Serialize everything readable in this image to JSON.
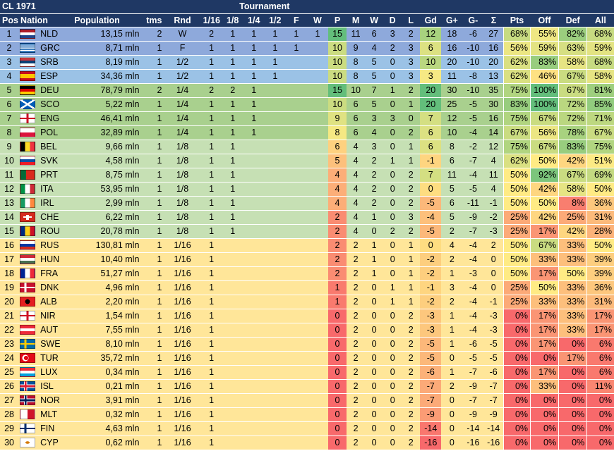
{
  "header": {
    "title": "CL 1971",
    "tournament": "Tournament",
    "cols": [
      "Pos",
      "Nation",
      "Population",
      "tms",
      "Rnd",
      "1/16",
      "1/8",
      "1/4",
      "1/2",
      "F",
      "W",
      "P",
      "M",
      "W",
      "D",
      "L",
      "Gd",
      "G+",
      "G-",
      "Σ",
      "Pts",
      "Off",
      "Def",
      "All"
    ]
  },
  "colors": {
    "header": "#1f3864",
    "band_winner": "#8ea9db",
    "band_semi": "#9bc2e6",
    "band_quarter": "#a9d08e",
    "band_r16": "#c6e0b4",
    "band_r32": "#ffe699",
    "red": "#f8696b",
    "yellow": "#ffeb84",
    "green": "#63be7b"
  },
  "rows": [
    {
      "pos": "1",
      "flag": "nld",
      "nation": "NLD",
      "pop": "13,15 mln",
      "tms": "2",
      "rnd": "W",
      "r16": "2",
      "r8": "1",
      "r4": "1",
      "r2": "1",
      "f": "1",
      "w": "1",
      "p": "15",
      "m": "11",
      "wi": "6",
      "d": "3",
      "l": "2",
      "gd": "12",
      "gp": "18",
      "gm": "-6",
      "sum": "27",
      "pts": "68%",
      "off": "55%",
      "def": "82%",
      "all": "68%"
    },
    {
      "pos": "2",
      "flag": "grc",
      "nation": "GRC",
      "pop": "8,71 mln",
      "tms": "1",
      "rnd": "F",
      "r16": "1",
      "r8": "1",
      "r4": "1",
      "r2": "1",
      "f": "1",
      "w": "",
      "p": "10",
      "m": "9",
      "wi": "4",
      "d": "2",
      "l": "3",
      "gd": "6",
      "gp": "16",
      "gm": "-10",
      "sum": "16",
      "pts": "56%",
      "off": "59%",
      "def": "63%",
      "all": "59%"
    },
    {
      "pos": "3",
      "flag": "srb",
      "nation": "SRB",
      "pop": "8,19 mln",
      "tms": "1",
      "rnd": "1/2",
      "r16": "1",
      "r8": "1",
      "r4": "1",
      "r2": "1",
      "f": "",
      "w": "",
      "p": "10",
      "m": "8",
      "wi": "5",
      "d": "0",
      "l": "3",
      "gd": "10",
      "gp": "20",
      "gm": "-10",
      "sum": "20",
      "pts": "62%",
      "off": "83%",
      "def": "58%",
      "all": "68%"
    },
    {
      "pos": "4",
      "flag": "esp",
      "nation": "ESP",
      "pop": "34,36 mln",
      "tms": "1",
      "rnd": "1/2",
      "r16": "1",
      "r8": "1",
      "r4": "1",
      "r2": "1",
      "f": "",
      "w": "",
      "p": "10",
      "m": "8",
      "wi": "5",
      "d": "0",
      "l": "3",
      "gd": "3",
      "gp": "11",
      "gm": "-8",
      "sum": "13",
      "pts": "62%",
      "off": "46%",
      "def": "67%",
      "all": "58%"
    },
    {
      "pos": "5",
      "flag": "deu",
      "nation": "DEU",
      "pop": "78,79 mln",
      "tms": "2",
      "rnd": "1/4",
      "r16": "2",
      "r8": "2",
      "r4": "1",
      "r2": "",
      "f": "",
      "w": "",
      "p": "15",
      "m": "10",
      "wi": "7",
      "d": "1",
      "l": "2",
      "gd": "20",
      "gp": "30",
      "gm": "-10",
      "sum": "35",
      "pts": "75%",
      "off": "100%",
      "def": "67%",
      "all": "81%"
    },
    {
      "pos": "6",
      "flag": "sco",
      "nation": "SCO",
      "pop": "5,22 mln",
      "tms": "1",
      "rnd": "1/4",
      "r16": "1",
      "r8": "1",
      "r4": "1",
      "r2": "",
      "f": "",
      "w": "",
      "p": "10",
      "m": "6",
      "wi": "5",
      "d": "0",
      "l": "1",
      "gd": "20",
      "gp": "25",
      "gm": "-5",
      "sum": "30",
      "pts": "83%",
      "off": "100%",
      "def": "72%",
      "all": "85%"
    },
    {
      "pos": "7",
      "flag": "eng",
      "nation": "ENG",
      "pop": "46,41 mln",
      "tms": "1",
      "rnd": "1/4",
      "r16": "1",
      "r8": "1",
      "r4": "1",
      "r2": "",
      "f": "",
      "w": "",
      "p": "9",
      "m": "6",
      "wi": "3",
      "d": "3",
      "l": "0",
      "gd": "7",
      "gp": "12",
      "gm": "-5",
      "sum": "16",
      "pts": "75%",
      "off": "67%",
      "def": "72%",
      "all": "71%"
    },
    {
      "pos": "8",
      "flag": "pol",
      "nation": "POL",
      "pop": "32,89 mln",
      "tms": "1",
      "rnd": "1/4",
      "r16": "1",
      "r8": "1",
      "r4": "1",
      "r2": "",
      "f": "",
      "w": "",
      "p": "8",
      "m": "6",
      "wi": "4",
      "d": "0",
      "l": "2",
      "gd": "6",
      "gp": "10",
      "gm": "-4",
      "sum": "14",
      "pts": "67%",
      "off": "56%",
      "def": "78%",
      "all": "67%"
    },
    {
      "pos": "9",
      "flag": "bel",
      "nation": "BEL",
      "pop": "9,66 mln",
      "tms": "1",
      "rnd": "1/8",
      "r16": "1",
      "r8": "1",
      "r4": "",
      "r2": "",
      "f": "",
      "w": "",
      "p": "6",
      "m": "4",
      "wi": "3",
      "d": "0",
      "l": "1",
      "gd": "6",
      "gp": "8",
      "gm": "-2",
      "sum": "12",
      "pts": "75%",
      "off": "67%",
      "def": "83%",
      "all": "75%"
    },
    {
      "pos": "10",
      "flag": "svk",
      "nation": "SVK",
      "pop": "4,58 mln",
      "tms": "1",
      "rnd": "1/8",
      "r16": "1",
      "r8": "1",
      "r4": "",
      "r2": "",
      "f": "",
      "w": "",
      "p": "5",
      "m": "4",
      "wi": "2",
      "d": "1",
      "l": "1",
      "gd": "-1",
      "gp": "6",
      "gm": "-7",
      "sum": "4",
      "pts": "62%",
      "off": "50%",
      "def": "42%",
      "all": "51%"
    },
    {
      "pos": "11",
      "flag": "prt",
      "nation": "PRT",
      "pop": "8,75 mln",
      "tms": "1",
      "rnd": "1/8",
      "r16": "1",
      "r8": "1",
      "r4": "",
      "r2": "",
      "f": "",
      "w": "",
      "p": "4",
      "m": "4",
      "wi": "2",
      "d": "0",
      "l": "2",
      "gd": "7",
      "gp": "11",
      "gm": "-4",
      "sum": "11",
      "pts": "50%",
      "off": "92%",
      "def": "67%",
      "all": "69%"
    },
    {
      "pos": "12",
      "flag": "ita",
      "nation": "ITA",
      "pop": "53,95 mln",
      "tms": "1",
      "rnd": "1/8",
      "r16": "1",
      "r8": "1",
      "r4": "",
      "r2": "",
      "f": "",
      "w": "",
      "p": "4",
      "m": "4",
      "wi": "2",
      "d": "0",
      "l": "2",
      "gd": "0",
      "gp": "5",
      "gm": "-5",
      "sum": "4",
      "pts": "50%",
      "off": "42%",
      "def": "58%",
      "all": "50%"
    },
    {
      "pos": "13",
      "flag": "irl",
      "nation": "IRL",
      "pop": "2,99 mln",
      "tms": "1",
      "rnd": "1/8",
      "r16": "1",
      "r8": "1",
      "r4": "",
      "r2": "",
      "f": "",
      "w": "",
      "p": "4",
      "m": "4",
      "wi": "2",
      "d": "0",
      "l": "2",
      "gd": "-5",
      "gp": "6",
      "gm": "-11",
      "sum": "-1",
      "pts": "50%",
      "off": "50%",
      "def": "8%",
      "all": "36%"
    },
    {
      "pos": "14",
      "flag": "che",
      "nation": "CHE",
      "pop": "6,22 mln",
      "tms": "1",
      "rnd": "1/8",
      "r16": "1",
      "r8": "1",
      "r4": "",
      "r2": "",
      "f": "",
      "w": "",
      "p": "2",
      "m": "4",
      "wi": "1",
      "d": "0",
      "l": "3",
      "gd": "-4",
      "gp": "5",
      "gm": "-9",
      "sum": "-2",
      "pts": "25%",
      "off": "42%",
      "def": "25%",
      "all": "31%"
    },
    {
      "pos": "15",
      "flag": "rou",
      "nation": "ROU",
      "pop": "20,78 mln",
      "tms": "1",
      "rnd": "1/8",
      "r16": "1",
      "r8": "1",
      "r4": "",
      "r2": "",
      "f": "",
      "w": "",
      "p": "2",
      "m": "4",
      "wi": "0",
      "d": "2",
      "l": "2",
      "gd": "-5",
      "gp": "2",
      "gm": "-7",
      "sum": "-3",
      "pts": "25%",
      "off": "17%",
      "def": "42%",
      "all": "28%"
    },
    {
      "pos": "16",
      "flag": "rus",
      "nation": "RUS",
      "pop": "130,81 mln",
      "tms": "1",
      "rnd": "1/16",
      "r16": "1",
      "r8": "",
      "r4": "",
      "r2": "",
      "f": "",
      "w": "",
      "p": "2",
      "m": "2",
      "wi": "1",
      "d": "0",
      "l": "1",
      "gd": "0",
      "gp": "4",
      "gm": "-4",
      "sum": "2",
      "pts": "50%",
      "off": "67%",
      "def": "33%",
      "all": "50%"
    },
    {
      "pos": "17",
      "flag": "hun",
      "nation": "HUN",
      "pop": "10,40 mln",
      "tms": "1",
      "rnd": "1/16",
      "r16": "1",
      "r8": "",
      "r4": "",
      "r2": "",
      "f": "",
      "w": "",
      "p": "2",
      "m": "2",
      "wi": "1",
      "d": "0",
      "l": "1",
      "gd": "-2",
      "gp": "2",
      "gm": "-4",
      "sum": "0",
      "pts": "50%",
      "off": "33%",
      "def": "33%",
      "all": "39%"
    },
    {
      "pos": "18",
      "flag": "fra",
      "nation": "FRA",
      "pop": "51,27 mln",
      "tms": "1",
      "rnd": "1/16",
      "r16": "1",
      "r8": "",
      "r4": "",
      "r2": "",
      "f": "",
      "w": "",
      "p": "2",
      "m": "2",
      "wi": "1",
      "d": "0",
      "l": "1",
      "gd": "-2",
      "gp": "1",
      "gm": "-3",
      "sum": "0",
      "pts": "50%",
      "off": "17%",
      "def": "50%",
      "all": "39%"
    },
    {
      "pos": "19",
      "flag": "dnk",
      "nation": "DNK",
      "pop": "4,96 mln",
      "tms": "1",
      "rnd": "1/16",
      "r16": "1",
      "r8": "",
      "r4": "",
      "r2": "",
      "f": "",
      "w": "",
      "p": "1",
      "m": "2",
      "wi": "0",
      "d": "1",
      "l": "1",
      "gd": "-1",
      "gp": "3",
      "gm": "-4",
      "sum": "0",
      "pts": "25%",
      "off": "50%",
      "def": "33%",
      "all": "36%"
    },
    {
      "pos": "20",
      "flag": "alb",
      "nation": "ALB",
      "pop": "2,20 mln",
      "tms": "1",
      "rnd": "1/16",
      "r16": "1",
      "r8": "",
      "r4": "",
      "r2": "",
      "f": "",
      "w": "",
      "p": "1",
      "m": "2",
      "wi": "0",
      "d": "1",
      "l": "1",
      "gd": "-2",
      "gp": "2",
      "gm": "-4",
      "sum": "-1",
      "pts": "25%",
      "off": "33%",
      "def": "33%",
      "all": "31%"
    },
    {
      "pos": "21",
      "flag": "nir",
      "nation": "NIR",
      "pop": "1,54 mln",
      "tms": "1",
      "rnd": "1/16",
      "r16": "1",
      "r8": "",
      "r4": "",
      "r2": "",
      "f": "",
      "w": "",
      "p": "0",
      "m": "2",
      "wi": "0",
      "d": "0",
      "l": "2",
      "gd": "-3",
      "gp": "1",
      "gm": "-4",
      "sum": "-3",
      "pts": "0%",
      "off": "17%",
      "def": "33%",
      "all": "17%"
    },
    {
      "pos": "22",
      "flag": "aut",
      "nation": "AUT",
      "pop": "7,55 mln",
      "tms": "1",
      "rnd": "1/16",
      "r16": "1",
      "r8": "",
      "r4": "",
      "r2": "",
      "f": "",
      "w": "",
      "p": "0",
      "m": "2",
      "wi": "0",
      "d": "0",
      "l": "2",
      "gd": "-3",
      "gp": "1",
      "gm": "-4",
      "sum": "-3",
      "pts": "0%",
      "off": "17%",
      "def": "33%",
      "all": "17%"
    },
    {
      "pos": "23",
      "flag": "swe",
      "nation": "SWE",
      "pop": "8,10 mln",
      "tms": "1",
      "rnd": "1/16",
      "r16": "1",
      "r8": "",
      "r4": "",
      "r2": "",
      "f": "",
      "w": "",
      "p": "0",
      "m": "2",
      "wi": "0",
      "d": "0",
      "l": "2",
      "gd": "-5",
      "gp": "1",
      "gm": "-6",
      "sum": "-5",
      "pts": "0%",
      "off": "17%",
      "def": "0%",
      "all": "6%"
    },
    {
      "pos": "24",
      "flag": "tur",
      "nation": "TUR",
      "pop": "35,72 mln",
      "tms": "1",
      "rnd": "1/16",
      "r16": "1",
      "r8": "",
      "r4": "",
      "r2": "",
      "f": "",
      "w": "",
      "p": "0",
      "m": "2",
      "wi": "0",
      "d": "0",
      "l": "2",
      "gd": "-5",
      "gp": "0",
      "gm": "-5",
      "sum": "-5",
      "pts": "0%",
      "off": "0%",
      "def": "17%",
      "all": "6%"
    },
    {
      "pos": "25",
      "flag": "lux",
      "nation": "LUX",
      "pop": "0,34 mln",
      "tms": "1",
      "rnd": "1/16",
      "r16": "1",
      "r8": "",
      "r4": "",
      "r2": "",
      "f": "",
      "w": "",
      "p": "0",
      "m": "2",
      "wi": "0",
      "d": "0",
      "l": "2",
      "gd": "-6",
      "gp": "1",
      "gm": "-7",
      "sum": "-6",
      "pts": "0%",
      "off": "17%",
      "def": "0%",
      "all": "6%"
    },
    {
      "pos": "26",
      "flag": "isl",
      "nation": "ISL",
      "pop": "0,21 mln",
      "tms": "1",
      "rnd": "1/16",
      "r16": "1",
      "r8": "",
      "r4": "",
      "r2": "",
      "f": "",
      "w": "",
      "p": "0",
      "m": "2",
      "wi": "0",
      "d": "0",
      "l": "2",
      "gd": "-7",
      "gp": "2",
      "gm": "-9",
      "sum": "-7",
      "pts": "0%",
      "off": "33%",
      "def": "0%",
      "all": "11%"
    },
    {
      "pos": "27",
      "flag": "nor",
      "nation": "NOR",
      "pop": "3,91 mln",
      "tms": "1",
      "rnd": "1/16",
      "r16": "1",
      "r8": "",
      "r4": "",
      "r2": "",
      "f": "",
      "w": "",
      "p": "0",
      "m": "2",
      "wi": "0",
      "d": "0",
      "l": "2",
      "gd": "-7",
      "gp": "0",
      "gm": "-7",
      "sum": "-7",
      "pts": "0%",
      "off": "0%",
      "def": "0%",
      "all": "0%"
    },
    {
      "pos": "28",
      "flag": "mlt",
      "nation": "MLT",
      "pop": "0,32 mln",
      "tms": "1",
      "rnd": "1/16",
      "r16": "1",
      "r8": "",
      "r4": "",
      "r2": "",
      "f": "",
      "w": "",
      "p": "0",
      "m": "2",
      "wi": "0",
      "d": "0",
      "l": "2",
      "gd": "-9",
      "gp": "0",
      "gm": "-9",
      "sum": "-9",
      "pts": "0%",
      "off": "0%",
      "def": "0%",
      "all": "0%"
    },
    {
      "pos": "29",
      "flag": "fin",
      "nation": "FIN",
      "pop": "4,63 mln",
      "tms": "1",
      "rnd": "1/16",
      "r16": "1",
      "r8": "",
      "r4": "",
      "r2": "",
      "f": "",
      "w": "",
      "p": "0",
      "m": "2",
      "wi": "0",
      "d": "0",
      "l": "2",
      "gd": "-14",
      "gp": "0",
      "gm": "-14",
      "sum": "-14",
      "pts": "0%",
      "off": "0%",
      "def": "0%",
      "all": "0%"
    },
    {
      "pos": "30",
      "flag": "cyp",
      "nation": "CYP",
      "pop": "0,62 mln",
      "tms": "1",
      "rnd": "1/16",
      "r16": "1",
      "r8": "",
      "r4": "",
      "r2": "",
      "f": "",
      "w": "",
      "p": "0",
      "m": "2",
      "wi": "0",
      "d": "0",
      "l": "2",
      "gd": "-16",
      "gp": "0",
      "gm": "-16",
      "sum": "-16",
      "pts": "0%",
      "off": "0%",
      "def": "0%",
      "all": "0%"
    }
  ]
}
